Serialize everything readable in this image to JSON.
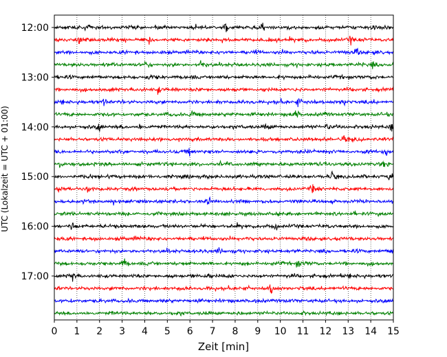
{
  "chart_data": {
    "type": "line",
    "title": "",
    "xlabel": "Zeit  [min]",
    "ylabel": "UTC (Lokalzeit = UTC + 01:00)",
    "xlim": [
      0,
      15
    ],
    "x_ticks": [
      0,
      1,
      2,
      3,
      4,
      5,
      6,
      7,
      8,
      9,
      10,
      11,
      12,
      13,
      14,
      15
    ],
    "x_tick_labels": [
      "0",
      "1",
      "2",
      "3",
      "4",
      "5",
      "6",
      "7",
      "8",
      "9",
      "10",
      "11",
      "12",
      "13",
      "14",
      "15"
    ],
    "y_tick_labels": [
      "12:00",
      "13:00",
      "14:00",
      "15:00",
      "16:00",
      "17:00"
    ],
    "grid": "vertical-dotted",
    "trace_colors": [
      "#000000",
      "#ff0000",
      "#0000ff",
      "#008000"
    ],
    "trace_start_times": [
      "12:00",
      "12:15",
      "12:30",
      "12:45",
      "13:00",
      "13:15",
      "13:30",
      "13:45",
      "14:00",
      "14:15",
      "14:30",
      "14:45",
      "15:00",
      "15:15",
      "15:30",
      "15:45",
      "16:00",
      "16:15",
      "16:30",
      "16:45",
      "17:00",
      "17:15",
      "17:30",
      "17:45"
    ],
    "trace_minutes_per_line": 15,
    "notable_events": [
      {
        "line": 0,
        "x": 1.45
      },
      {
        "line": 0,
        "x": 7.6
      },
      {
        "line": 0,
        "x": 9.2
      },
      {
        "line": 0,
        "x": 14.2
      },
      {
        "line": 1,
        "x": 1.1
      },
      {
        "line": 1,
        "x": 4.2
      },
      {
        "line": 1,
        "x": 13.1
      },
      {
        "line": 2,
        "x": 13.4
      },
      {
        "line": 3,
        "x": 4.0
      },
      {
        "line": 3,
        "x": 6.5
      },
      {
        "line": 3,
        "x": 14.1
      },
      {
        "line": 4,
        "x": 4.2
      },
      {
        "line": 5,
        "x": 4.6
      },
      {
        "line": 6,
        "x": 2.2
      },
      {
        "line": 6,
        "x": 10.8
      },
      {
        "line": 6,
        "x": 12.9
      },
      {
        "line": 7,
        "x": 6.1
      },
      {
        "line": 7,
        "x": 10.7
      },
      {
        "line": 8,
        "x": 2.0
      },
      {
        "line": 8,
        "x": 3.8
      },
      {
        "line": 8,
        "x": 9.4
      },
      {
        "line": 8,
        "x": 12.1
      },
      {
        "line": 8,
        "x": 14.9
      },
      {
        "line": 9,
        "x": 12.8
      },
      {
        "line": 10,
        "x": 6.0
      },
      {
        "line": 10,
        "x": 14.7
      },
      {
        "line": 11,
        "x": 0.2
      },
      {
        "line": 11,
        "x": 14.6
      },
      {
        "line": 12,
        "x": 12.3
      },
      {
        "line": 12,
        "x": 14.9
      },
      {
        "line": 13,
        "x": 0.2
      },
      {
        "line": 13,
        "x": 1.5
      },
      {
        "line": 13,
        "x": 11.4
      },
      {
        "line": 14,
        "x": 6.8
      },
      {
        "line": 16,
        "x": 0.8
      },
      {
        "line": 16,
        "x": 9.8
      },
      {
        "line": 17,
        "x": 3.7
      },
      {
        "line": 18,
        "x": 7.3
      },
      {
        "line": 18,
        "x": 14.9
      },
      {
        "line": 19,
        "x": 3.1
      },
      {
        "line": 19,
        "x": 10.8
      },
      {
        "line": 20,
        "x": 0.8
      },
      {
        "line": 20,
        "x": 6.8
      },
      {
        "line": 21,
        "x": 9.6
      }
    ]
  }
}
